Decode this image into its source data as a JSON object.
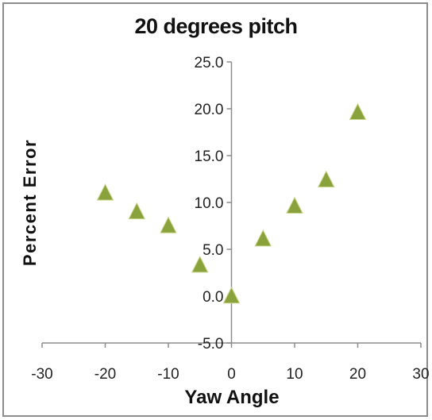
{
  "chart_data": {
    "type": "scatter",
    "title": "20 degrees pitch",
    "xlabel": "Yaw Angle",
    "ylabel": "Percent Error",
    "xlim": [
      -30,
      30
    ],
    "ylim": [
      -5,
      25
    ],
    "xticks": [
      -30,
      -20,
      -10,
      0,
      10,
      20,
      30
    ],
    "yticks": [
      -5,
      0,
      5,
      10,
      15,
      20,
      25
    ],
    "xtick_labels": [
      "-30",
      "-20",
      "-10",
      "0",
      "10",
      "20",
      "30"
    ],
    "ytick_labels": [
      "-5.0",
      "0.0",
      "5.0",
      "10.0",
      "15.0",
      "20.0",
      "25.0"
    ],
    "grid": false,
    "legend": "none",
    "marker": "triangle",
    "marker_color": "#8aa23c",
    "series": [
      {
        "x": [
          -20,
          -15,
          -10,
          -5,
          0,
          5,
          10,
          15,
          20
        ],
        "y": [
          11.0,
          9.0,
          7.5,
          3.3,
          0.0,
          6.1,
          9.6,
          12.4,
          19.6
        ]
      }
    ]
  }
}
